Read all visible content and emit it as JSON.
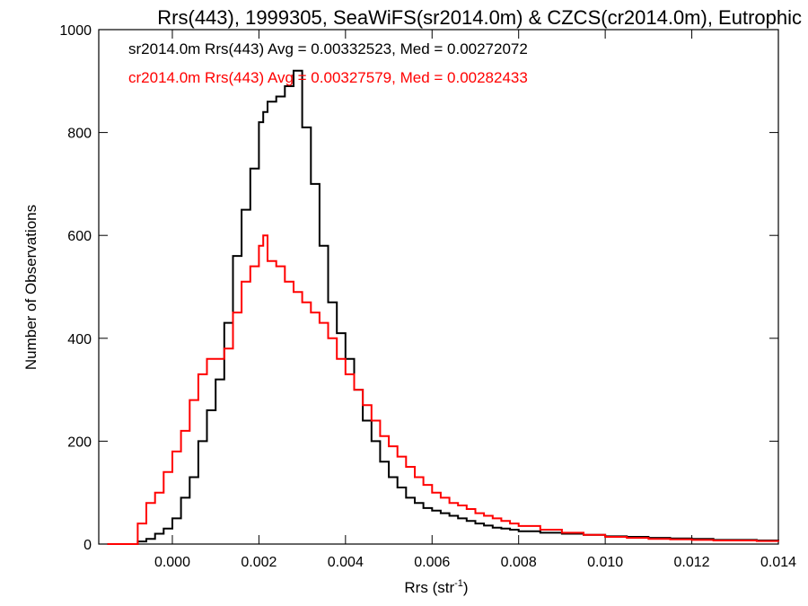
{
  "chart_data": {
    "type": "histogram",
    "title": "Rrs(443), 1999305, SeaWiFS(sr2014.0m) & CZCS(cr2014.0m), Eutrophic",
    "xlabel_main": "Rrs (str",
    "xlabel_sup": "-1",
    "xlabel_close": ")",
    "ylabel": "Number of Observations",
    "xlim": [
      -0.0017,
      0.014
    ],
    "ylim": [
      0,
      1000
    ],
    "x_ticks": [
      0.0,
      0.002,
      0.004,
      0.006,
      0.008,
      0.01,
      0.012,
      0.014
    ],
    "x_tick_labels": [
      "0.000",
      "0.002",
      "0.004",
      "0.006",
      "0.008",
      "0.010",
      "0.012",
      "0.014"
    ],
    "y_ticks": [
      0,
      200,
      400,
      600,
      800,
      1000
    ],
    "y_tick_labels": [
      "0",
      "200",
      "400",
      "600",
      "800",
      "1000"
    ],
    "grid": false,
    "x": [
      -0.0015,
      -0.001,
      -0.0008,
      -0.0006,
      -0.0004,
      -0.0002,
      0.0,
      0.0002,
      0.0004,
      0.0006,
      0.0008,
      0.001,
      0.0012,
      0.0014,
      0.0016,
      0.0018,
      0.002,
      0.0021,
      0.0022,
      0.0024,
      0.0026,
      0.0028,
      0.003,
      0.0032,
      0.0034,
      0.0036,
      0.0038,
      0.004,
      0.0042,
      0.0044,
      0.0046,
      0.0048,
      0.005,
      0.0052,
      0.0054,
      0.0056,
      0.0058,
      0.006,
      0.0062,
      0.0064,
      0.0066,
      0.0068,
      0.007,
      0.0072,
      0.0074,
      0.0076,
      0.0078,
      0.008,
      0.0085,
      0.009,
      0.0095,
      0.01,
      0.0105,
      0.011,
      0.0115,
      0.012,
      0.0125,
      0.013,
      0.0135,
      0.014
    ],
    "series": [
      {
        "name": "sr2014.0m",
        "color": "#000000",
        "values": [
          0,
          0,
          5,
          10,
          20,
          30,
          50,
          90,
          130,
          200,
          260,
          320,
          430,
          560,
          650,
          730,
          820,
          840,
          860,
          870,
          890,
          920,
          810,
          700,
          580,
          470,
          410,
          360,
          300,
          240,
          200,
          160,
          130,
          110,
          90,
          80,
          70,
          65,
          60,
          55,
          50,
          45,
          40,
          36,
          32,
          30,
          28,
          25,
          22,
          20,
          18,
          15,
          14,
          12,
          11,
          10,
          8,
          8,
          7,
          6
        ]
      },
      {
        "name": "cr2014.0m",
        "color": "#ff0000",
        "values": [
          0,
          0,
          40,
          80,
          100,
          140,
          180,
          220,
          280,
          330,
          360,
          360,
          380,
          450,
          510,
          540,
          580,
          600,
          550,
          540,
          510,
          490,
          470,
          450,
          430,
          400,
          360,
          330,
          300,
          270,
          240,
          210,
          190,
          170,
          150,
          130,
          115,
          100,
          90,
          80,
          75,
          68,
          60,
          55,
          50,
          45,
          40,
          35,
          28,
          22,
          18,
          14,
          12,
          10,
          9,
          8,
          7,
          7,
          6,
          5
        ]
      }
    ],
    "annotations": [
      {
        "label": "sr2014.0m Rrs(443) Avg = 0.00332523, Med = 0.00272072",
        "color": "#000000"
      },
      {
        "label": "cr2014.0m Rrs(443) Avg = 0.00327579, Med = 0.00282433",
        "color": "#ff0000"
      }
    ]
  }
}
